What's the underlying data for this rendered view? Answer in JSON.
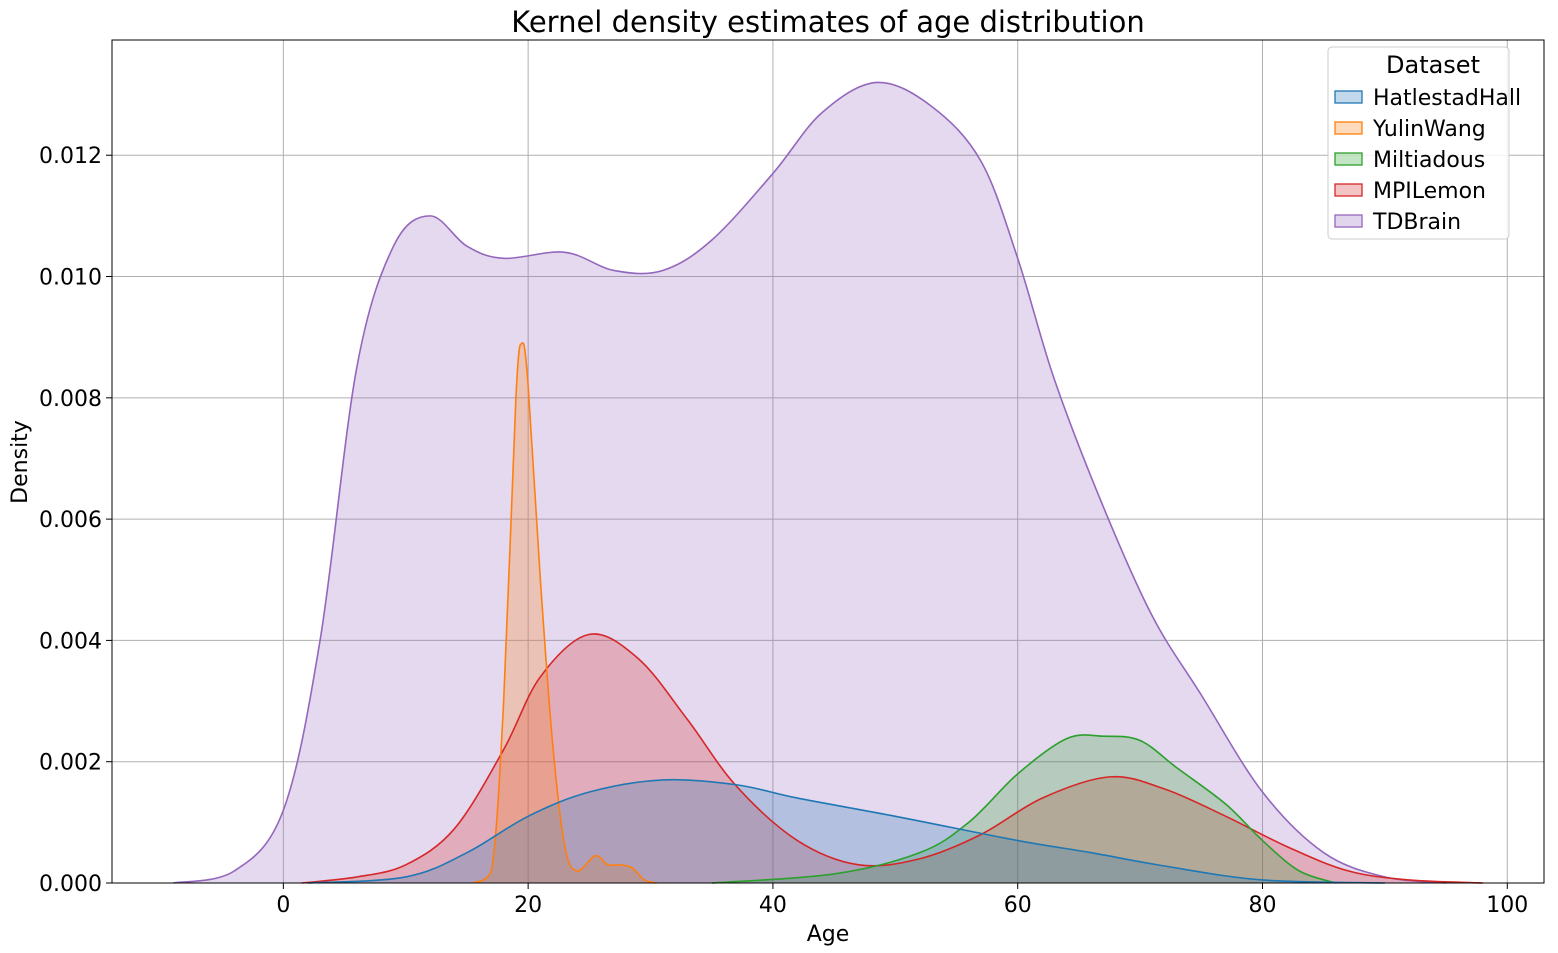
{
  "chart_data": {
    "type": "area",
    "title": "Kernel density estimates of age distribution",
    "xlabel": "Age",
    "ylabel": "Density",
    "xlim": [
      -14,
      103
    ],
    "ylim": [
      0,
      0.0139
    ],
    "grid": true,
    "x_ticks": [
      0,
      20,
      40,
      60,
      80,
      100
    ],
    "x_tick_labels": [
      "0",
      "20",
      "40",
      "60",
      "80",
      "100"
    ],
    "y_ticks": [
      0,
      0.002,
      0.004,
      0.006,
      0.008,
      0.01,
      0.012
    ],
    "y_tick_labels": [
      "0.000",
      "0.002",
      "0.004",
      "0.006",
      "0.008",
      "0.010",
      "0.012"
    ],
    "legend": {
      "title": "Dataset",
      "position": "top-right"
    },
    "series": [
      {
        "name": "HatlestadHall",
        "color": "#1f77b4",
        "x": [
          2,
          10,
          15,
          20,
          25,
          31,
          37,
          42,
          50,
          60,
          66,
          72,
          80,
          90
        ],
        "y": [
          0,
          0.0001,
          0.0005,
          0.0011,
          0.0015,
          0.0017,
          0.00162,
          0.0014,
          0.0011,
          0.0007,
          0.0005,
          0.00028,
          5e-05,
          0
        ]
      },
      {
        "name": "YulinWang",
        "color": "#ff7f0e",
        "x": [
          15.5,
          17,
          18,
          19,
          19.5,
          20,
          21,
          22,
          23,
          24,
          25.5,
          26.5,
          27.5,
          28.5,
          29.5,
          30.5
        ],
        "y": [
          0,
          0.0002,
          0.003,
          0.008,
          0.0089,
          0.0082,
          0.005,
          0.0023,
          0.0006,
          0.0002,
          0.00045,
          0.0003,
          0.0003,
          0.00025,
          5e-05,
          0
        ]
      },
      {
        "name": "Miltiadous",
        "color": "#2ca02c",
        "x": [
          35,
          45,
          52,
          56,
          60,
          64,
          67,
          70,
          73,
          77,
          80,
          83,
          86
        ],
        "y": [
          0,
          0.00015,
          0.0005,
          0.001,
          0.0018,
          0.00238,
          0.00242,
          0.00235,
          0.0019,
          0.0013,
          0.0007,
          0.0002,
          0
        ],
        "legend_label": "Miltiadous"
      },
      {
        "name": "MPILemon",
        "color": "#d62728",
        "x": [
          1.5,
          6,
          10,
          14,
          18,
          21,
          25,
          29,
          33,
          37,
          42,
          47,
          52,
          57,
          62,
          67.5,
          72,
          77,
          82,
          87,
          92,
          98
        ],
        "y": [
          0,
          0.0001,
          0.0003,
          0.0009,
          0.0022,
          0.0034,
          0.0041,
          0.0037,
          0.0027,
          0.0016,
          0.0007,
          0.0003,
          0.0004,
          0.0008,
          0.0014,
          0.00175,
          0.00155,
          0.0011,
          0.0006,
          0.0002,
          5e-05,
          0
        ]
      },
      {
        "name": "TDBrain",
        "color": "#9467bd",
        "x": [
          -9,
          -4,
          0,
          3,
          6,
          9,
          12,
          15,
          18,
          23,
          27,
          31,
          35,
          40,
          44,
          48.5,
          53,
          57,
          60,
          63,
          67,
          71,
          75,
          80,
          85,
          90,
          95
        ],
        "y": [
          0,
          0.0002,
          0.0012,
          0.004,
          0.0085,
          0.0105,
          0.011,
          0.0105,
          0.0103,
          0.0104,
          0.0101,
          0.0101,
          0.0106,
          0.0117,
          0.0127,
          0.0132,
          0.0128,
          0.0119,
          0.0103,
          0.0083,
          0.0062,
          0.0044,
          0.0031,
          0.0015,
          0.0005,
          0.0001,
          0
        ]
      }
    ]
  }
}
